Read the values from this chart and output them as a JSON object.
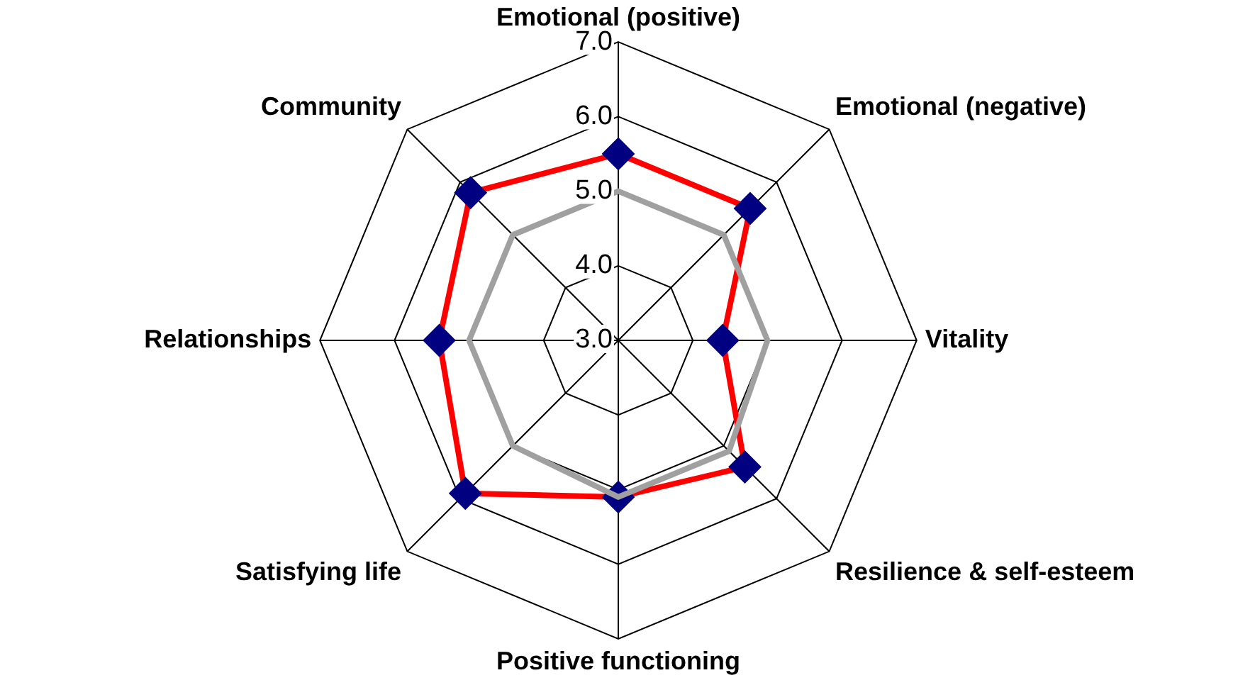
{
  "chart_data": {
    "type": "radar",
    "categories": [
      "Emotional (positive)",
      "Emotional (negative)",
      "Vitality",
      "Resilience & self-esteem",
      "Positive functioning",
      "Satisfying life",
      "Relationships",
      "Community"
    ],
    "series": [
      {
        "color": "#a0a0a0",
        "values": [
          5.0,
          5.0,
          5.0,
          5.1,
          5.1,
          5.0,
          5.0,
          5.0
        ],
        "marker": "none"
      },
      {
        "color": "#ff0000",
        "values": [
          5.5,
          5.5,
          4.4,
          5.4,
          5.1,
          5.9,
          5.4,
          5.8
        ],
        "marker": "diamond"
      }
    ],
    "ylim": [
      3,
      7
    ],
    "yticks": [
      {
        "value": 3,
        "label": "3.0"
      },
      {
        "value": 4,
        "label": "4.0"
      },
      {
        "value": 5,
        "label": "5.0"
      },
      {
        "value": 6,
        "label": "6.0"
      },
      {
        "value": 7,
        "label": "7.0"
      }
    ],
    "grid": true,
    "legend": false
  }
}
